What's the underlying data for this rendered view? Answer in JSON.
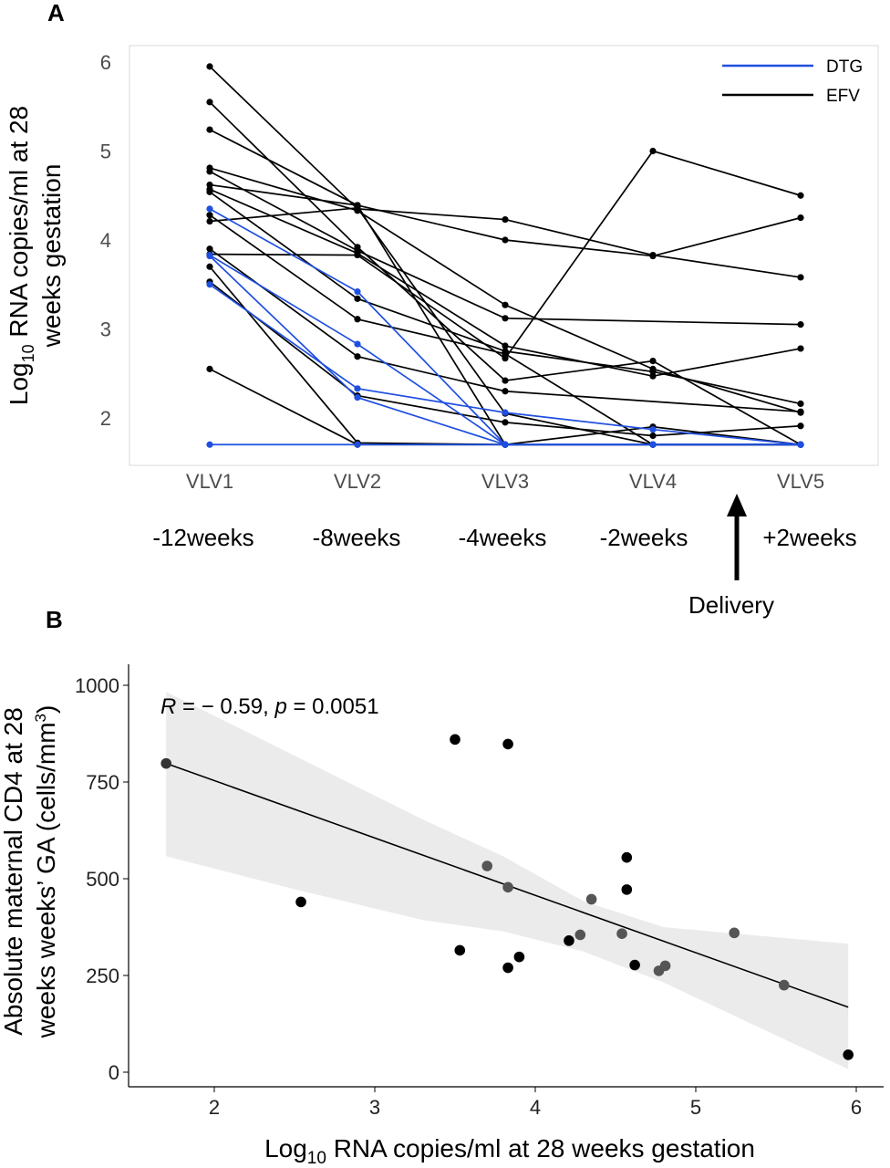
{
  "chart_data": [
    {
      "panel": "A",
      "type": "line",
      "xlabel": "",
      "ylabel_line1": "Log",
      "ylabel_sub": "10",
      "ylabel_line1_rest": " RNA copies/ml at 28",
      "ylabel_line2": "weeks gestation",
      "categories": [
        "VLV1",
        "VLV2",
        "VLV3",
        "VLV4",
        "VLV5"
      ],
      "timepoints": [
        "-12weeks",
        "-8weeks",
        "-4weeks",
        "-2weeks",
        "+2weeks"
      ],
      "delivery_label": "Delivery",
      "ylim": [
        1.5,
        6.2
      ],
      "yticks": [
        "2",
        "3",
        "4",
        "5",
        "6"
      ],
      "legend": {
        "placement": "top-right",
        "entries": [
          {
            "name": "DTG",
            "color": "#1f4fe0"
          },
          {
            "name": "EFV",
            "color": "#000000"
          }
        ]
      },
      "series": [
        {
          "group": "EFV",
          "points": [
            [
              1,
              5.95
            ],
            [
              2,
              4.35
            ],
            [
              3,
              4.23
            ],
            [
              4,
              3.83
            ],
            [
              5,
              3.58
            ]
          ]
        },
        {
          "group": "EFV",
          "points": [
            [
              1,
              5.55
            ],
            [
              2,
              3.92
            ],
            [
              3,
              2.42
            ],
            [
              4,
              2.64
            ],
            [
              5,
              1.7
            ]
          ]
        },
        {
          "group": "EFV",
          "points": [
            [
              1,
              5.24
            ],
            [
              2,
              4.39
            ],
            [
              3,
              4.0
            ],
            [
              4,
              3.82
            ],
            [
              5,
              4.25
            ]
          ]
        },
        {
          "group": "EFV",
          "points": [
            [
              1,
              4.81
            ],
            [
              2,
              4.33
            ],
            [
              3,
              3.27
            ],
            [
              4,
              2.55
            ],
            [
              5,
              2.06
            ]
          ]
        },
        {
          "group": "EFV",
          "points": [
            [
              1,
              4.77
            ],
            [
              2,
              3.88
            ],
            [
              3,
              3.12
            ],
            [
              5,
              3.05
            ]
          ]
        },
        {
          "group": "EFV",
          "points": [
            [
              1,
              4.62
            ],
            [
              2,
              4.39
            ],
            [
              3,
              1.7
            ],
            [
              4,
              1.9
            ],
            [
              5,
              1.7
            ]
          ]
        },
        {
          "group": "EFV",
          "points": [
            [
              1,
              4.57
            ],
            [
              2,
              3.85
            ],
            [
              3,
              2.81
            ],
            [
              4,
              2.47
            ],
            [
              5,
              2.78
            ]
          ]
        },
        {
          "group": "EFV",
          "points": [
            [
              1,
              4.54
            ],
            [
              2,
              3.34
            ],
            [
              3,
              2.75
            ],
            [
              4,
              2.52
            ],
            [
              5,
              2.16
            ]
          ]
        },
        {
          "group": "EFV",
          "points": [
            [
              1,
              4.28
            ],
            [
              2,
              3.11
            ],
            [
              3,
              2.72
            ],
            [
              4,
              1.7
            ],
            [
              5,
              1.7
            ]
          ]
        },
        {
          "group": "EFV",
          "points": [
            [
              1,
              4.21
            ],
            [
              2,
              4.36
            ],
            [
              3,
              2.05
            ],
            [
              4,
              1.7
            ],
            [
              5,
              1.7
            ]
          ]
        },
        {
          "group": "EFV",
          "points": [
            [
              1,
              3.9
            ],
            [
              2,
              2.69
            ],
            [
              3,
              2.3
            ],
            [
              5,
              2.07
            ]
          ]
        },
        {
          "group": "EFV",
          "points": [
            [
              1,
              3.84
            ],
            [
              2,
              3.83
            ],
            [
              3,
              2.67
            ],
            [
              4,
              5.0
            ],
            [
              5,
              4.5
            ]
          ]
        },
        {
          "group": "EFV",
          "points": [
            [
              1,
              3.7
            ],
            [
              2,
              1.72
            ],
            [
              3,
              1.7
            ],
            [
              4,
              1.7
            ],
            [
              5,
              1.7
            ]
          ]
        },
        {
          "group": "EFV",
          "points": [
            [
              1,
              3.53
            ],
            [
              2,
              2.25
            ],
            [
              3,
              1.95
            ],
            [
              4,
              1.8
            ],
            [
              5,
              1.91
            ]
          ]
        },
        {
          "group": "EFV",
          "points": [
            [
              1,
              2.55
            ],
            [
              2,
              1.7
            ],
            [
              3,
              1.7
            ],
            [
              4,
              1.7
            ],
            [
              5,
              1.7
            ]
          ]
        },
        {
          "group": "DTG",
          "points": [
            [
              1,
              4.35
            ],
            [
              2,
              3.42
            ],
            [
              3,
              1.7
            ],
            [
              4,
              1.7
            ],
            [
              5,
              1.7
            ]
          ]
        },
        {
          "group": "DTG",
          "points": [
            [
              1,
              3.83
            ],
            [
              2,
              2.83
            ],
            [
              3,
              1.7
            ],
            [
              4,
              1.7
            ],
            [
              5,
              1.7
            ]
          ]
        },
        {
          "group": "DTG",
          "points": [
            [
              1,
              3.82
            ],
            [
              2,
              2.23
            ],
            [
              3,
              1.7
            ],
            [
              4,
              1.7
            ],
            [
              5,
              1.7
            ]
          ]
        },
        {
          "group": "DTG",
          "points": [
            [
              1,
              3.5
            ],
            [
              2,
              2.33
            ],
            [
              3,
              2.06
            ],
            [
              4,
              1.87
            ],
            [
              5,
              1.7
            ]
          ]
        },
        {
          "group": "DTG",
          "points": [
            [
              1,
              1.7
            ],
            [
              2,
              1.7
            ],
            [
              3,
              1.7
            ],
            [
              4,
              1.7
            ],
            [
              5,
              1.7
            ]
          ]
        }
      ]
    },
    {
      "panel": "B",
      "type": "scatter",
      "xlabel_main": "Log",
      "xlabel_sub": "10",
      "xlabel_rest": " RNA copies/ml at 28 weeks gestation",
      "ylabel_line1": "Absolute maternal CD4 at 28",
      "ylabel_line2_a": "weeks  weeks’ GA (cells/mm",
      "ylabel_line2_sup": "3",
      "ylabel_line2_b": ")",
      "xlim": [
        1.6,
        6.2
      ],
      "ylim": [
        -25,
        1040
      ],
      "xticks": [
        "2",
        "3",
        "4",
        "5",
        "6"
      ],
      "yticks": [
        "0",
        "250",
        "500",
        "750",
        "1000"
      ],
      "annotation": {
        "R_label": "R",
        "R_text": " = − 0.59, ",
        "p_label": "p",
        "p_text": " = 0.0051"
      },
      "points": [
        [
          1.7,
          798,
          "#333333"
        ],
        [
          2.54,
          440,
          "#000000"
        ],
        [
          3.5,
          860,
          "#000000"
        ],
        [
          3.53,
          315,
          "#000000"
        ],
        [
          3.7,
          533,
          "#555555"
        ],
        [
          3.83,
          848,
          "#000000"
        ],
        [
          3.83,
          478,
          "#555555"
        ],
        [
          3.83,
          270,
          "#000000"
        ],
        [
          3.9,
          298,
          "#000000"
        ],
        [
          4.21,
          340,
          "#000000"
        ],
        [
          4.28,
          355,
          "#555555"
        ],
        [
          4.35,
          447,
          "#555555"
        ],
        [
          4.54,
          358,
          "#555555"
        ],
        [
          4.57,
          555,
          "#000000"
        ],
        [
          4.57,
          472,
          "#000000"
        ],
        [
          4.62,
          277,
          "#000000"
        ],
        [
          4.77,
          262,
          "#555555"
        ],
        [
          4.81,
          275,
          "#555555"
        ],
        [
          5.24,
          360,
          "#555555"
        ],
        [
          5.55,
          225,
          "#555555"
        ],
        [
          5.95,
          45,
          "#000000"
        ]
      ],
      "regression": {
        "intercept": 1050.3,
        "slope": -148.3,
        "x_range": [
          1.7,
          5.95
        ]
      },
      "ci_band": [
        [
          1.7,
          558,
          983
        ],
        [
          2.5,
          473,
          818
        ],
        [
          3.3,
          393,
          653
        ],
        [
          3.8,
          364,
          558
        ],
        [
          4.3,
          312,
          442
        ],
        [
          4.8,
          232,
          375
        ],
        [
          5.3,
          134,
          356
        ],
        [
          5.95,
          8,
          332
        ]
      ],
      "ci_color": "#ebebeb"
    }
  ]
}
